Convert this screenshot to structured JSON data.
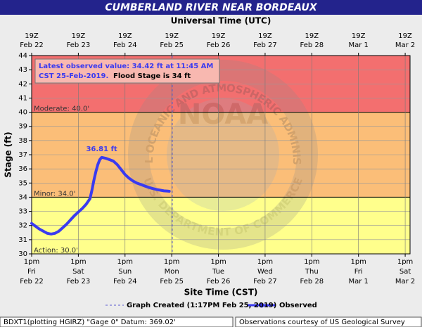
{
  "chart_data": {
    "type": "hydrograph",
    "title": "CUMBERLAND RIVER NEAR BORDEAUX",
    "x2_label": "Universal Time (UTC)",
    "x_label": "Site Time (CST)",
    "y_label": "Stage (ft)",
    "xlim": [
      "2019-02-22T13:00",
      "2019-03-02T15:30"
    ],
    "ylim": [
      30,
      44
    ],
    "yticks": [
      30,
      31,
      32,
      33,
      34,
      35,
      36,
      37,
      38,
      39,
      40,
      41,
      42,
      43,
      44
    ],
    "grid": true,
    "xticks": [
      {
        "value": "2019-02-22T13:00",
        "label": [
          "1pm",
          "Fri",
          "Feb 22"
        ]
      },
      {
        "value": "2019-02-23T13:00",
        "label": [
          "1pm",
          "Sat",
          "Feb 23"
        ]
      },
      {
        "value": "2019-02-24T13:00",
        "label": [
          "1pm",
          "Sun",
          "Feb 24"
        ]
      },
      {
        "value": "2019-02-25T13:00",
        "label": [
          "1pm",
          "Mon",
          "Feb 25"
        ]
      },
      {
        "value": "2019-02-26T13:00",
        "label": [
          "1pm",
          "Tue",
          "Feb 26"
        ]
      },
      {
        "value": "2019-02-27T13:00",
        "label": [
          "1pm",
          "Wed",
          "Feb 27"
        ]
      },
      {
        "value": "2019-02-28T13:00",
        "label": [
          "1pm",
          "Thu",
          "Feb 28"
        ]
      },
      {
        "value": "2019-03-01T13:00",
        "label": [
          "1pm",
          "Fri",
          "Mar  1"
        ]
      },
      {
        "value": "2019-03-02T13:00",
        "label": [
          "1pm",
          "Sat",
          "Mar  2"
        ]
      }
    ],
    "x2ticks": [
      {
        "value": "2019-02-22T13:00",
        "label": [
          "19Z",
          "Feb 22"
        ]
      },
      {
        "value": "2019-02-23T13:00",
        "label": [
          "19Z",
          "Feb 23"
        ]
      },
      {
        "value": "2019-02-24T13:00",
        "label": [
          "19Z",
          "Feb 24"
        ]
      },
      {
        "value": "2019-02-25T13:00",
        "label": [
          "19Z",
          "Feb 25"
        ]
      },
      {
        "value": "2019-02-26T13:00",
        "label": [
          "19Z",
          "Feb 26"
        ]
      },
      {
        "value": "2019-02-27T13:00",
        "label": [
          "19Z",
          "Feb 27"
        ]
      },
      {
        "value": "2019-02-28T13:00",
        "label": [
          "19Z",
          "Feb 28"
        ]
      },
      {
        "value": "2019-03-01T13:00",
        "label": [
          "19Z",
          "Mar  1"
        ]
      },
      {
        "value": "2019-03-02T13:00",
        "label": [
          "19Z",
          "Mar  2"
        ]
      }
    ],
    "flood_categories": [
      {
        "label": "Action: 30.0'",
        "value": 30,
        "color": "#ffff8c"
      },
      {
        "label": "Minor: 34.0'",
        "value": 34,
        "color": "#fbbe78"
      },
      {
        "label": "Moderate: 40.0'",
        "value": 40,
        "color": "#f36f6f"
      }
    ],
    "x": [
      "2019-02-22T13:00",
      "2019-02-22T15:00",
      "2019-02-22T17:00",
      "2019-02-22T19:00",
      "2019-02-22T21:00",
      "2019-02-22T23:00",
      "2019-02-23T01:00",
      "2019-02-23T03:00",
      "2019-02-23T05:00",
      "2019-02-23T07:00",
      "2019-02-23T09:00",
      "2019-02-23T11:00",
      "2019-02-23T13:00",
      "2019-02-23T15:00",
      "2019-02-23T17:00",
      "2019-02-23T19:00",
      "2019-02-23T20:00",
      "2019-02-23T21:00",
      "2019-02-23T22:00",
      "2019-02-23T23:00",
      "2019-02-24T00:00",
      "2019-02-24T01:00",
      "2019-02-24T03:00",
      "2019-02-24T05:00",
      "2019-02-24T07:00",
      "2019-02-24T09:00",
      "2019-02-24T11:00",
      "2019-02-24T13:00",
      "2019-02-24T15:00",
      "2019-02-24T17:00",
      "2019-02-24T19:00",
      "2019-02-24T21:00",
      "2019-02-24T23:00",
      "2019-02-25T01:00",
      "2019-02-25T03:00",
      "2019-02-25T05:00",
      "2019-02-25T07:00",
      "2019-02-25T09:00",
      "2019-02-25T11:00",
      "2019-02-25T11:45"
    ],
    "series": [
      {
        "name": "Observed",
        "color": "#3a3af0",
        "values": [
          32.15,
          31.95,
          31.75,
          31.6,
          31.45,
          31.4,
          31.45,
          31.6,
          31.85,
          32.1,
          32.4,
          32.7,
          32.95,
          33.2,
          33.5,
          33.9,
          34.5,
          35.2,
          35.8,
          36.3,
          36.65,
          36.81,
          36.75,
          36.65,
          36.55,
          36.3,
          35.95,
          35.6,
          35.35,
          35.15,
          35.0,
          34.9,
          34.8,
          34.7,
          34.62,
          34.55,
          34.5,
          34.45,
          34.43,
          34.42
        ],
        "value_labels": [
          null,
          null,
          null,
          null,
          null,
          null,
          null,
          null,
          null,
          null,
          null,
          null,
          null,
          null,
          null,
          null,
          null,
          null,
          null,
          null,
          null,
          "36.81 ft",
          null,
          null,
          null,
          null,
          null,
          null,
          null,
          null,
          null,
          null,
          null,
          null,
          null,
          null,
          null,
          null,
          null,
          null
        ]
      }
    ],
    "graph_created": {
      "x": "2019-02-25T13:17",
      "label": "Graph Created (1:17PM Feb 25, 2019)"
    },
    "annotation": [
      "Latest observed value: 34.42 ft at 11:45 AM",
      "CST 25-Feb-2019.",
      "Flood Stage is 34 ft"
    ],
    "watermark": [
      "NOAA",
      "NATIONAL OCEANIC AND ATMOSPHERIC ADMINISTRATION",
      "U.S. DEPARTMENT OF COMMERCE"
    ],
    "footer_left": "BDXT1(plotting HGIRZ) \"Gage 0\" Datum: 369.02'",
    "footer_right": "Observations courtesy of US Geological Survey"
  }
}
